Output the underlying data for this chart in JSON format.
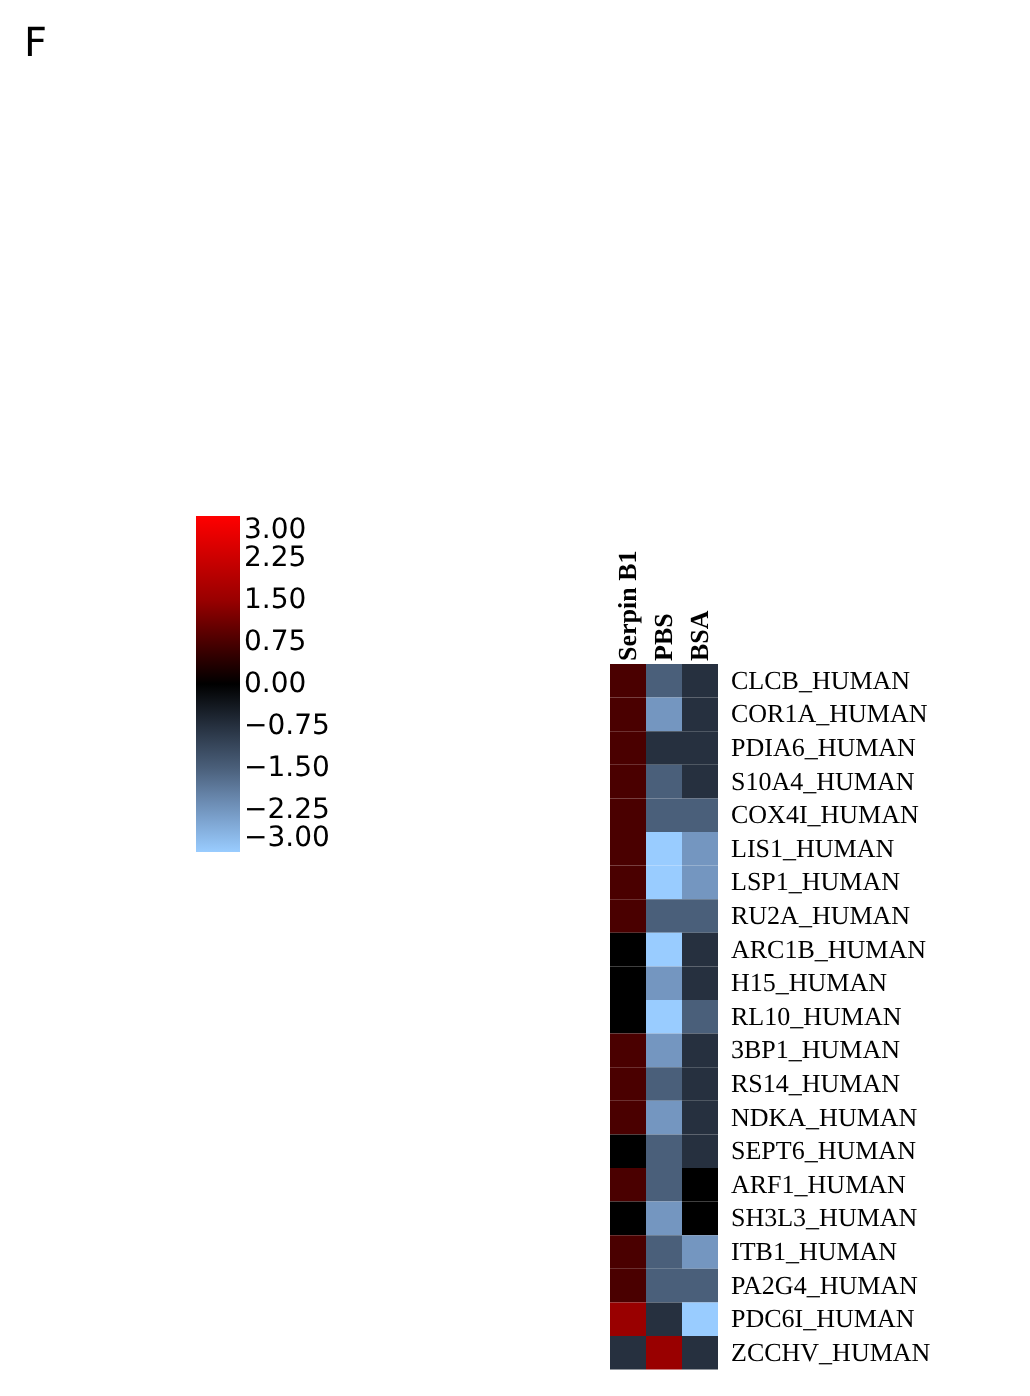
{
  "chart_data": {
    "type": "heatmap",
    "annotations": [
      "F"
    ],
    "categories": [
      "Serpin B1",
      "PBS",
      "BSA"
    ],
    "y_categories": [
      "CLCB_HUMAN",
      "COR1A_HUMAN",
      "PDIA6_HUMAN",
      "S10A4_HUMAN",
      "COX4I_HUMAN",
      "LIS1_HUMAN",
      "LSP1_HUMAN",
      "RU2A_HUMAN",
      "ARC1B_HUMAN",
      "H15_HUMAN",
      "RL10_HUMAN",
      "3BP1_HUMAN",
      "RS14_HUMAN",
      "NDKA_HUMAN",
      "SEPT6_HUMAN",
      "ARF1_HUMAN",
      "SH3L3_HUMAN",
      "ITB1_HUMAN",
      "PA2G4_HUMAN",
      "PDC6I_HUMAN",
      "ZCCHV_HUMAN"
    ],
    "cells": [
      [
        0.75,
        -1.5,
        -0.75
      ],
      [
        0.75,
        -2.25,
        -0.75
      ],
      [
        0.75,
        -0.75,
        -0.75
      ],
      [
        0.75,
        -1.5,
        -0.75
      ],
      [
        0.75,
        -1.5,
        -1.5
      ],
      [
        0.75,
        -3,
        -2.25
      ],
      [
        0.75,
        -3,
        -2.25
      ],
      [
        0.75,
        -1.5,
        -1.5
      ],
      [
        0,
        -3,
        -0.75
      ],
      [
        0,
        -2.25,
        -0.75
      ],
      [
        0,
        -3,
        -1.5
      ],
      [
        0.75,
        -2.25,
        -0.75
      ],
      [
        0.75,
        -1.5,
        -0.75
      ],
      [
        0.75,
        -2.25,
        -0.75
      ],
      [
        0,
        -1.5,
        -0.75
      ],
      [
        0.75,
        -1.5,
        0
      ],
      [
        0,
        -2.25,
        0
      ],
      [
        0.75,
        -1.5,
        -2.25
      ],
      [
        0.75,
        -1.5,
        -1.5
      ],
      [
        1.5,
        -0.75,
        -3
      ],
      [
        -0.75,
        1.5,
        -0.75
      ]
    ],
    "clim": [
      -3,
      3
    ],
    "cticks": [
      {
        "value": 3,
        "label": "3.00"
      },
      {
        "value": 2.25,
        "label": "2.25"
      },
      {
        "value": 1.5,
        "label": "1.50"
      },
      {
        "value": 0.75,
        "label": "0.75"
      },
      {
        "value": 0,
        "label": "0.00"
      },
      {
        "value": -0.75,
        "label": "−0.75"
      },
      {
        "value": -1.5,
        "label": "−1.50"
      },
      {
        "value": -2.25,
        "label": "−2.25"
      },
      {
        "value": -3,
        "label": "−3.00"
      }
    ],
    "colors": [
      "#ff0000",
      "#cc0000",
      "#990000",
      "#4a0000",
      "#000000",
      "#26303f",
      "#4a5f7a",
      "#7496c0",
      "#99ccff"
    ]
  }
}
